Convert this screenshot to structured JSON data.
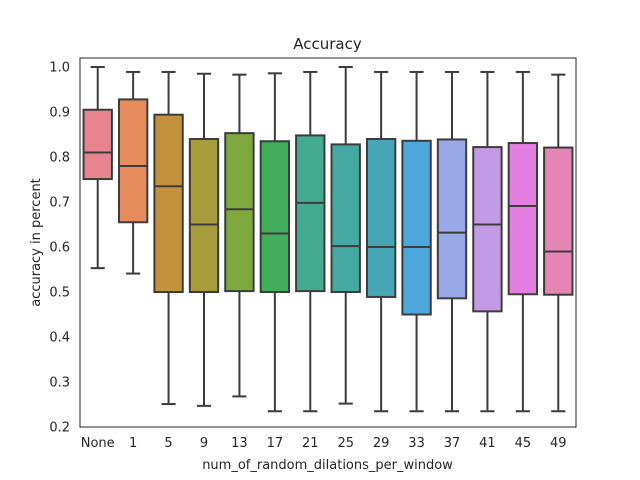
{
  "chart_data": {
    "type": "boxplot",
    "title": "Accuracy",
    "xlabel": "num_of_random_dilations_per_window",
    "ylabel": "accuracy in percent",
    "ylim": [
      0.2,
      1.02
    ],
    "yticks": [
      0.2,
      0.3,
      0.4,
      0.5,
      0.6,
      0.7,
      0.8,
      0.9,
      1.0
    ],
    "ytick_labels": [
      "0.2",
      "0.3",
      "0.4",
      "0.5",
      "0.6",
      "0.7",
      "0.8",
      "0.9",
      "1.0"
    ],
    "grid": false,
    "categories": [
      "None",
      "1",
      "5",
      "9",
      "13",
      "17",
      "21",
      "25",
      "29",
      "33",
      "37",
      "41",
      "45",
      "49"
    ],
    "boxes": [
      {
        "category": "None",
        "whisker_low": 0.553,
        "q1": 0.751,
        "median": 0.81,
        "q3": 0.905,
        "whisker_high": 1.0,
        "color": "#e8848f"
      },
      {
        "category": "1",
        "whisker_low": 0.541,
        "q1": 0.655,
        "median": 0.78,
        "q3": 0.928,
        "whisker_high": 0.989,
        "color": "#e58b5c"
      },
      {
        "category": "5",
        "whisker_low": 0.251,
        "q1": 0.5,
        "median": 0.735,
        "q3": 0.894,
        "whisker_high": 0.989,
        "color": "#c2923d"
      },
      {
        "category": "9",
        "whisker_low": 0.247,
        "q1": 0.5,
        "median": 0.65,
        "q3": 0.84,
        "whisker_high": 0.985,
        "color": "#a89d3c"
      },
      {
        "category": "13",
        "whisker_low": 0.268,
        "q1": 0.502,
        "median": 0.684,
        "q3": 0.853,
        "whisker_high": 0.983,
        "color": "#7fa83e"
      },
      {
        "category": "17",
        "whisker_low": 0.235,
        "q1": 0.5,
        "median": 0.63,
        "q3": 0.835,
        "whisker_high": 0.986,
        "color": "#42ad5b"
      },
      {
        "category": "21",
        "whisker_low": 0.235,
        "q1": 0.502,
        "median": 0.698,
        "q3": 0.848,
        "whisker_high": 0.989,
        "color": "#45ab8e"
      },
      {
        "category": "25",
        "whisker_low": 0.252,
        "q1": 0.5,
        "median": 0.602,
        "q3": 0.828,
        "whisker_high": 1.0,
        "color": "#46a8a2"
      },
      {
        "category": "29",
        "whisker_low": 0.235,
        "q1": 0.489,
        "median": 0.6,
        "q3": 0.84,
        "whisker_high": 0.989,
        "color": "#47a6b6"
      },
      {
        "category": "33",
        "whisker_low": 0.235,
        "q1": 0.45,
        "median": 0.6,
        "q3": 0.836,
        "whisker_high": 0.989,
        "color": "#4ea7da"
      },
      {
        "category": "37",
        "whisker_low": 0.235,
        "q1": 0.486,
        "median": 0.632,
        "q3": 0.839,
        "whisker_high": 0.989,
        "color": "#9aaae8"
      },
      {
        "category": "41",
        "whisker_low": 0.235,
        "q1": 0.457,
        "median": 0.65,
        "q3": 0.822,
        "whisker_high": 0.989,
        "color": "#c39ae6"
      },
      {
        "category": "45",
        "whisker_low": 0.235,
        "q1": 0.495,
        "median": 0.691,
        "q3": 0.831,
        "whisker_high": 0.989,
        "color": "#e37fe0"
      },
      {
        "category": "49",
        "whisker_low": 0.235,
        "q1": 0.494,
        "median": 0.59,
        "q3": 0.821,
        "whisker_high": 0.983,
        "color": "#e586b4"
      }
    ]
  }
}
